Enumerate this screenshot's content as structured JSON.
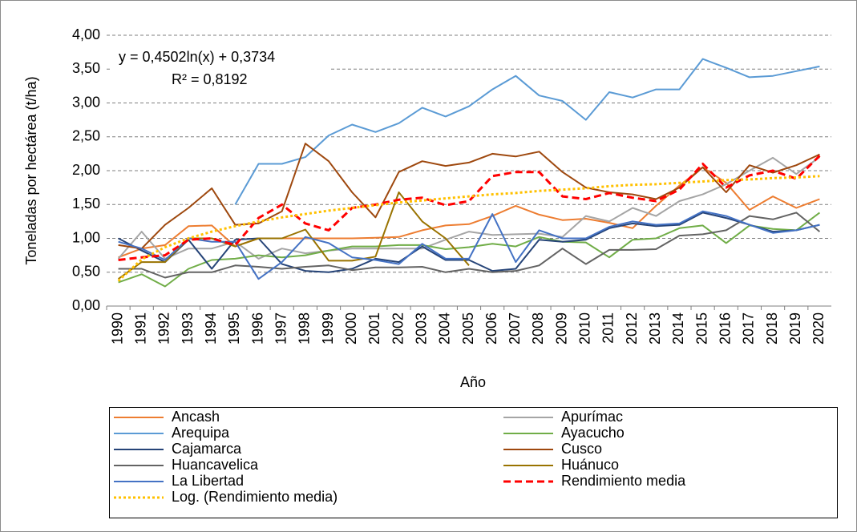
{
  "chart_data": {
    "type": "line",
    "y_label": "Toneladas por hectárea (t/ha)",
    "x_label": "Año",
    "annotations": [
      "y = 0,4502ln(x) + 0,3734",
      "R² = 0,8192"
    ],
    "categories": [
      "1990",
      "1991",
      "1992",
      "1993",
      "1994",
      "1995",
      "1996",
      "1997",
      "1998",
      "1999",
      "2000",
      "2001",
      "2002",
      "2003",
      "2004",
      "2005",
      "2006",
      "2007",
      "2008",
      "2009",
      "2010",
      "2011",
      "2012",
      "2013",
      "2014",
      "2015",
      "2016",
      "2017",
      "2018",
      "2019",
      "2020"
    ],
    "ylim": [
      0,
      4
    ],
    "yticks": [
      {
        "value": 0,
        "label": "0,00"
      },
      {
        "value": 0.5,
        "label": "0,50"
      },
      {
        "value": 1,
        "label": "1,00"
      },
      {
        "value": 1.5,
        "label": "1,50"
      },
      {
        "value": 2,
        "label": "2,00"
      },
      {
        "value": 2.5,
        "label": "2,50"
      },
      {
        "value": 3,
        "label": "3,00"
      },
      {
        "value": 3.5,
        "label": "3,50"
      },
      {
        "value": 4,
        "label": "4,00"
      }
    ],
    "grid": true,
    "series": [
      {
        "name": "Ancash",
        "color": "#ed7d31",
        "values": [
          0.72,
          0.85,
          0.9,
          1.18,
          1.19,
          0.88,
          1.0,
          1.0,
          1.0,
          1.0,
          1.0,
          1.01,
          1.02,
          1.12,
          1.19,
          1.21,
          1.33,
          1.48,
          1.35,
          1.27,
          1.29,
          1.23,
          1.15,
          1.48,
          1.78,
          2.05,
          1.82,
          1.42,
          1.62,
          1.45,
          1.58
        ]
      },
      {
        "name": "Apurímac",
        "color": "#a5a5a5",
        "values": [
          0.7,
          1.1,
          0.7,
          0.85,
          0.85,
          0.95,
          0.7,
          0.85,
          0.78,
          0.82,
          0.85,
          0.85,
          0.85,
          0.85,
          0.98,
          1.1,
          1.05,
          1.06,
          1.07,
          1.02,
          1.33,
          1.25,
          1.45,
          1.33,
          1.55,
          1.65,
          1.8,
          2.0,
          2.19,
          1.95,
          2.2
        ]
      },
      {
        "name": "Arequipa",
        "color": "#5b9bd5",
        "values": [
          null,
          null,
          null,
          null,
          null,
          1.5,
          2.1,
          2.1,
          2.2,
          2.52,
          2.68,
          2.57,
          2.7,
          2.93,
          2.8,
          2.95,
          3.2,
          3.4,
          3.11,
          3.03,
          2.75,
          3.16,
          3.08,
          3.2,
          3.2,
          3.65,
          3.52,
          3.38,
          3.4,
          3.47,
          3.54
        ]
      },
      {
        "name": "Ayacucho",
        "color": "#70ad47",
        "values": [
          0.35,
          0.47,
          0.29,
          0.55,
          0.68,
          0.7,
          0.75,
          0.72,
          0.75,
          0.82,
          0.88,
          0.88,
          0.9,
          0.9,
          0.84,
          0.87,
          0.92,
          0.88,
          1.02,
          0.95,
          0.94,
          0.72,
          0.98,
          1.0,
          1.15,
          1.19,
          0.93,
          1.19,
          1.14,
          1.12,
          1.38
        ]
      },
      {
        "name": "Cajamarca",
        "color": "#264478",
        "values": [
          1.0,
          0.82,
          0.65,
          0.98,
          0.55,
          0.98,
          1.0,
          0.62,
          0.52,
          0.5,
          0.55,
          0.7,
          0.65,
          0.88,
          0.68,
          0.68,
          0.52,
          0.55,
          0.98,
          0.95,
          0.98,
          1.15,
          1.22,
          1.18,
          1.2,
          1.38,
          1.3,
          1.2,
          1.1,
          1.12,
          1.2
        ]
      },
      {
        "name": "Cusco",
        "color": "#9e480e",
        "values": [
          0.9,
          0.85,
          1.2,
          1.45,
          1.74,
          1.2,
          1.22,
          1.4,
          2.4,
          2.14,
          1.68,
          1.31,
          1.98,
          2.14,
          2.07,
          2.12,
          2.25,
          2.21,
          2.28,
          1.98,
          1.75,
          1.68,
          1.65,
          1.58,
          1.75,
          2.05,
          1.68,
          2.08,
          1.97,
          2.08,
          2.24
        ]
      },
      {
        "name": "Huancavelica",
        "color": "#636363",
        "values": [
          0.55,
          0.55,
          0.42,
          0.5,
          0.5,
          0.6,
          0.58,
          0.55,
          0.58,
          0.6,
          0.53,
          0.57,
          0.57,
          0.58,
          0.5,
          0.55,
          0.5,
          0.52,
          0.6,
          0.85,
          0.62,
          0.83,
          0.83,
          0.84,
          1.04,
          1.06,
          1.12,
          1.33,
          1.28,
          1.38,
          1.1
        ]
      },
      {
        "name": "Huánuco",
        "color": "#997300",
        "values": [
          0.4,
          0.65,
          0.65,
          1.0,
          1.0,
          0.88,
          1.0,
          1.0,
          1.13,
          0.67,
          0.67,
          0.73,
          1.68,
          1.25,
          1.0,
          0.6,
          null,
          null,
          null,
          null,
          null,
          null,
          null,
          null,
          null,
          null,
          null,
          null,
          null,
          null,
          null
        ]
      },
      {
        "name": "La Libertad",
        "color": "#4472c4",
        "values": [
          0.95,
          0.85,
          0.68,
          1.0,
          0.95,
          0.95,
          0.4,
          0.65,
          1.02,
          0.93,
          0.72,
          0.68,
          0.62,
          0.92,
          0.7,
          0.7,
          1.36,
          0.65,
          1.12,
          1.0,
          1.0,
          1.17,
          1.25,
          1.2,
          1.22,
          1.4,
          1.33,
          1.2,
          1.08,
          1.12,
          1.2
        ]
      },
      {
        "name": "Rendimiento media",
        "color": "#ff0000",
        "dash": "dashed",
        "values": [
          0.68,
          0.72,
          0.75,
          0.98,
          1.0,
          0.9,
          1.3,
          1.5,
          1.22,
          1.12,
          1.45,
          1.5,
          1.57,
          1.6,
          1.49,
          1.55,
          1.92,
          1.98,
          1.98,
          1.62,
          1.58,
          1.67,
          1.6,
          1.55,
          1.72,
          2.1,
          1.75,
          1.93,
          2.0,
          1.88,
          2.22
        ]
      },
      {
        "name": "Log. (Rendimiento media)",
        "color": "#ffc000",
        "dash": "dotted",
        "values": [
          0.37,
          0.69,
          0.87,
          1.0,
          1.1,
          1.18,
          1.25,
          1.31,
          1.36,
          1.41,
          1.45,
          1.49,
          1.53,
          1.56,
          1.59,
          1.62,
          1.65,
          1.67,
          1.7,
          1.72,
          1.74,
          1.77,
          1.79,
          1.8,
          1.82,
          1.84,
          1.86,
          1.87,
          1.89,
          1.9,
          1.92
        ]
      }
    ]
  }
}
